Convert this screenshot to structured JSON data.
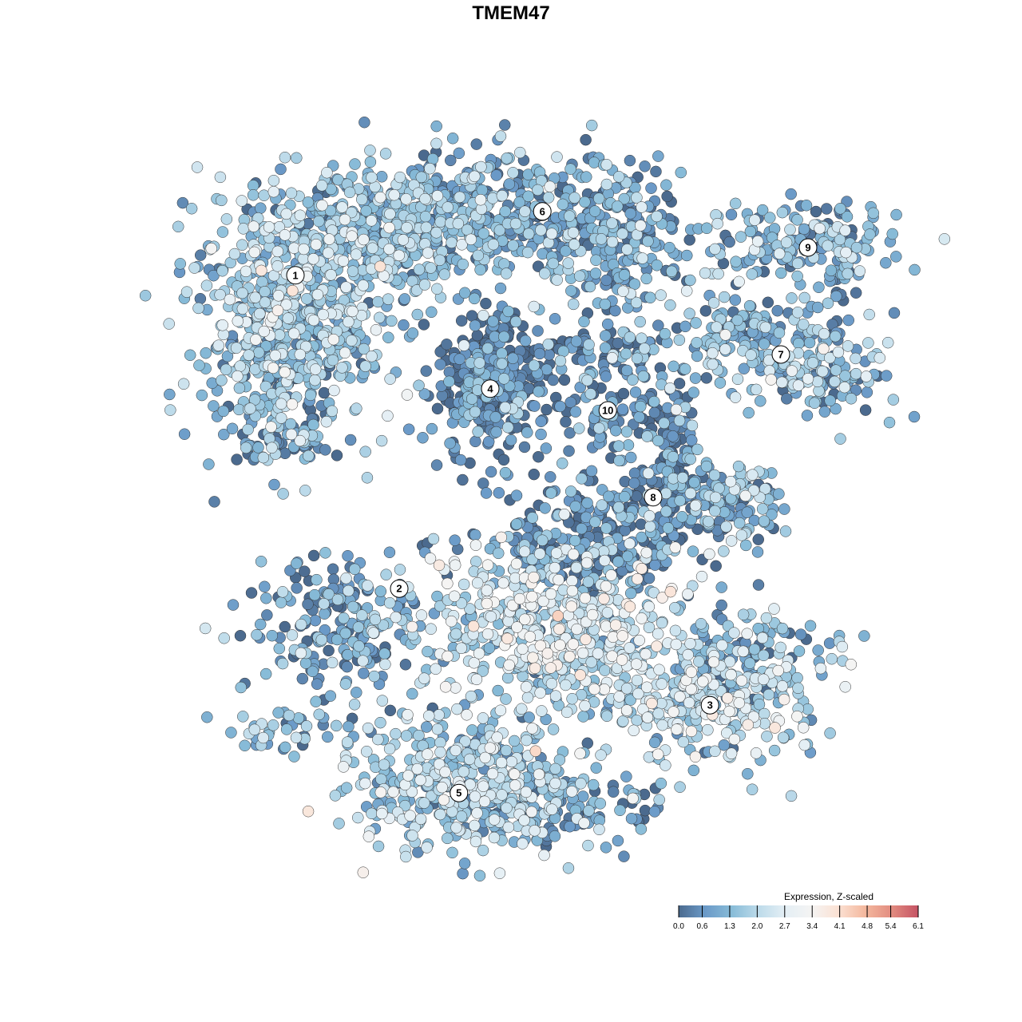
{
  "chart_data": {
    "type": "scatter",
    "title": "TMEM47",
    "xlabel": "",
    "ylabel": "",
    "grid": false,
    "axes_visible": false,
    "xlim": [
      -11.5,
      12.5
    ],
    "ylim": [
      -12,
      12
    ],
    "point_outline": "#333333",
    "legend": {
      "title": "Expression, Z-scaled",
      "placement": "bottom-right",
      "ticks": [
        "0.0",
        "0.6",
        "1.3",
        "2.0",
        "2.7",
        "3.4",
        "4.1",
        "4.8",
        "5.4",
        "6.1"
      ],
      "range": [
        0,
        6.1
      ],
      "colors": [
        "#4b6a8e",
        "#6b9ac8",
        "#88bcd8",
        "#bddbea",
        "#e4eff5",
        "#f5f4f3",
        "#fbe1d3",
        "#f4b89e",
        "#e28c80",
        "#c55364"
      ]
    },
    "cluster_labels": [
      {
        "label": "1",
        "x": -6.75,
        "y": 7.38
      },
      {
        "label": "2",
        "x": -3.5,
        "y": -2.43
      },
      {
        "label": "3",
        "x": 6.23,
        "y": -6.08
      },
      {
        "label": "4",
        "x": -0.65,
        "y": 3.83
      },
      {
        "label": "5",
        "x": -1.63,
        "y": -8.83
      },
      {
        "label": "6",
        "x": 0.98,
        "y": 9.38
      },
      {
        "label": "7",
        "x": 8.45,
        "y": 4.9
      },
      {
        "label": "8",
        "x": 4.45,
        "y": 0.43
      },
      {
        "label": "9",
        "x": 9.3,
        "y": 8.25
      },
      {
        "label": "10",
        "x": 3.03,
        "y": 3.15
      }
    ],
    "point_groups": [
      {
        "cluster": "1",
        "cx": -6.5,
        "cy": 7.0,
        "sx": 1.8,
        "sy": 1.6,
        "n": 500,
        "mean_expr": 1.6
      },
      {
        "cluster": "1",
        "cx": -3.5,
        "cy": 9.0,
        "sx": 2.0,
        "sy": 0.9,
        "n": 300,
        "mean_expr": 1.3
      },
      {
        "cluster": "1",
        "cx": -7.2,
        "cy": 4.5,
        "sx": 1.3,
        "sy": 1.2,
        "n": 200,
        "mean_expr": 1.4
      },
      {
        "cluster": "1",
        "cx": -6.8,
        "cy": 2.2,
        "sx": 0.9,
        "sy": 0.4,
        "n": 60,
        "mean_expr": 0.6
      },
      {
        "cluster": "6",
        "cx": 0.5,
        "cy": 9.3,
        "sx": 2.5,
        "sy": 1.0,
        "n": 400,
        "mean_expr": 1.0
      },
      {
        "cluster": "6",
        "cx": 3.5,
        "cy": 8.0,
        "sx": 1.0,
        "sy": 1.0,
        "n": 120,
        "mean_expr": 0.9
      },
      {
        "cluster": "4",
        "cx": -0.7,
        "cy": 3.9,
        "sx": 1.0,
        "sy": 1.1,
        "n": 350,
        "mean_expr": 0.4
      },
      {
        "cluster": "10",
        "cx": 3.0,
        "cy": 3.3,
        "sx": 0.7,
        "sy": 1.0,
        "n": 80,
        "mean_expr": 0.5
      },
      {
        "cluster": "10",
        "cx": 2.5,
        "cy": 5.0,
        "sx": 1.2,
        "sy": 0.4,
        "n": 60,
        "mean_expr": 0.3
      },
      {
        "cluster": "7",
        "cx": 7.5,
        "cy": 5.5,
        "sx": 1.5,
        "sy": 0.6,
        "n": 150,
        "mean_expr": 1.2
      },
      {
        "cluster": "7",
        "cx": 9.5,
        "cy": 4.2,
        "sx": 1.2,
        "sy": 0.6,
        "n": 120,
        "mean_expr": 1.4
      },
      {
        "cluster": "9",
        "cx": 9.0,
        "cy": 8.3,
        "sx": 1.5,
        "sy": 0.6,
        "n": 150,
        "mean_expr": 1.3
      },
      {
        "cluster": "9",
        "cx": 10.5,
        "cy": 7.5,
        "sx": 0.3,
        "sy": 1.0,
        "n": 40,
        "mean_expr": 1.0
      },
      {
        "cluster": "8",
        "cx": 5.0,
        "cy": 1.3,
        "sx": 0.5,
        "sy": 1.5,
        "n": 150,
        "mean_expr": 0.4
      },
      {
        "cluster": "8",
        "cx": 6.9,
        "cy": 0.3,
        "sx": 0.9,
        "sy": 0.6,
        "n": 120,
        "mean_expr": 1.2
      },
      {
        "cluster": "8",
        "cx": 3.0,
        "cy": 0.2,
        "sx": 1.5,
        "sy": 0.4,
        "n": 80,
        "mean_expr": 0.4
      },
      {
        "cluster": "2",
        "cx": -5.2,
        "cy": -3.5,
        "sx": 1.6,
        "sy": 1.1,
        "n": 220,
        "mean_expr": 0.9
      },
      {
        "cluster": "2",
        "cx": -7.0,
        "cy": -7.0,
        "sx": 0.9,
        "sy": 0.4,
        "n": 40,
        "mean_expr": 1.2
      },
      {
        "cluster": "3",
        "cx": 6.0,
        "cy": -5.8,
        "sx": 1.8,
        "sy": 1.0,
        "n": 300,
        "mean_expr": 2.0
      },
      {
        "cluster": "3",
        "cx": 7.5,
        "cy": -4.5,
        "sx": 1.2,
        "sy": 0.8,
        "n": 100,
        "mean_expr": 1.0
      },
      {
        "cluster": "central",
        "cx": 1.5,
        "cy": -3.5,
        "sx": 2.0,
        "sy": 1.4,
        "n": 500,
        "mean_expr": 2.2
      },
      {
        "cluster": "central",
        "cx": 2.0,
        "cy": -1.2,
        "sx": 1.8,
        "sy": 0.6,
        "n": 150,
        "mean_expr": 0.3
      },
      {
        "cluster": "5",
        "cx": -1.2,
        "cy": -8.5,
        "sx": 1.8,
        "sy": 1.1,
        "n": 450,
        "mean_expr": 1.7
      },
      {
        "cluster": "5",
        "cx": 1.5,
        "cy": -9.2,
        "sx": 1.2,
        "sy": 0.6,
        "n": 120,
        "mean_expr": 0.8
      }
    ]
  }
}
